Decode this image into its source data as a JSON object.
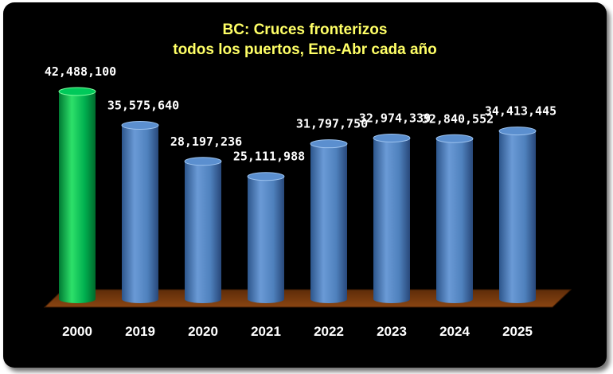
{
  "chart_data": {
    "type": "bar",
    "style": "3d-cylinder",
    "title_line1": "BC: Cruces fronterizos",
    "title_line2": "todos los puertos, Ene-Abr cada año",
    "categories": [
      "2000",
      "2019",
      "2020",
      "2021",
      "2022",
      "2023",
      "2024",
      "2025"
    ],
    "values": [
      42488100,
      35575640,
      28197236,
      25111988,
      31797750,
      32974339,
      32840552,
      34413445
    ],
    "value_labels": [
      "42,488,100",
      "35,575,640",
      "28,197,236",
      "25,111,988",
      "31,797,750",
      "32,974,339",
      "32,840,552",
      "34,413,445"
    ],
    "highlight_category": "2000",
    "xlabel": "",
    "ylabel": "",
    "grid": false,
    "legend": "none"
  },
  "colors": {
    "background": "#000000",
    "title": "#ffff66",
    "highlight_bar": "#00b050",
    "bar": "#4f81bd",
    "floor": "#7a3a0e",
    "text": "#ffffff"
  }
}
